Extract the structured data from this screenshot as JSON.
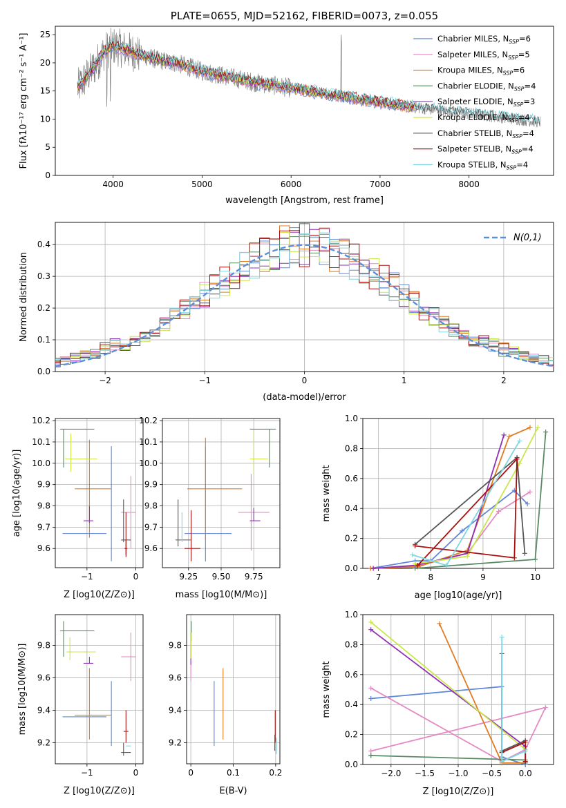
{
  "colors": {
    "chabrier_miles": "#5f86d9",
    "salpeter_miles": "#e38ac4",
    "kroupa_miles": "#e07b20",
    "chabrier_elodie": "#5a8a64",
    "salpeter_elodie": "#8e2fb5",
    "kroupa_elodie": "#c8e84a",
    "chabrier_stelib": "#555555",
    "salpeter_stelib": "#a81010",
    "kroupa_stelib": "#7fd6e0",
    "gaussian": "#5b8fd8",
    "grid": "#b0b0b0"
  },
  "legend_series": [
    {
      "label": "Chabrier MILES, N",
      "sub": "SSP",
      "tail": "=6",
      "color_key": "chabrier_miles"
    },
    {
      "label": "Salpeter MILES, N",
      "sub": "SSP",
      "tail": "=5",
      "color_key": "salpeter_miles"
    },
    {
      "label": "Kroupa MILES, N",
      "sub": "SSP",
      "tail": "=6",
      "color_key": "kroupa_miles"
    },
    {
      "label": "Chabrier ELODIE, N",
      "sub": "SSP",
      "tail": "=4",
      "color_key": "chabrier_elodie"
    },
    {
      "label": "Salpeter ELODIE, N",
      "sub": "SSP",
      "tail": "=3",
      "color_key": "salpeter_elodie"
    },
    {
      "label": "Kroupa ELODIE, N",
      "sub": "SSP",
      "tail": "=4",
      "color_key": "kroupa_elodie"
    },
    {
      "label": "Chabrier STELIB, N",
      "sub": "SSP",
      "tail": "=4",
      "color_key": "chabrier_stelib"
    },
    {
      "label": "Salpeter STELIB, N",
      "sub": "SSP",
      "tail": "=4",
      "color_key": "salpeter_stelib"
    },
    {
      "label": "Kroupa STELIB, N",
      "sub": "SSP",
      "tail": "=4",
      "color_key": "kroupa_stelib"
    }
  ],
  "chart_data": [
    {
      "id": "spectrum",
      "type": "line",
      "title": "PLATE=0655, MJD=52162, FIBERID=0073, z=0.055",
      "xlabel": "wavelength [Angstrom, rest frame]",
      "ylabel": "Flux [fλ10⁻¹⁷ erg cm⁻² s⁻¹ A⁻¹]",
      "xlim": [
        3350,
        8950
      ],
      "ylim": [
        0,
        26.5
      ],
      "xticks": [
        4000,
        5000,
        6000,
        7000,
        8000
      ],
      "yticks": [
        0,
        5,
        10,
        15,
        20,
        25
      ],
      "legend": "upper right",
      "continuum": {
        "x": [
          3600,
          3700,
          3800,
          3900,
          4000,
          4100,
          4300,
          4500,
          4700,
          5000,
          5300,
          5600,
          6000,
          6400,
          6800,
          7200,
          7600,
          8000,
          8400,
          8800
        ],
        "y": [
          15.5,
          17.5,
          19.5,
          22.0,
          23.0,
          22.5,
          21.5,
          20.5,
          20.0,
          18.5,
          17.5,
          16.5,
          15.5,
          14.5,
          13.5,
          12.5,
          11.7,
          11.0,
          10.3,
          9.5
        ]
      },
      "data_x_range": [
        3600,
        8800
      ]
    },
    {
      "id": "residuals",
      "type": "line",
      "xlabel": "(data-model)/error",
      "ylabel": "Normed distribution",
      "xlim": [
        -2.5,
        2.5
      ],
      "ylim": [
        0,
        0.47
      ],
      "xticks": [
        -2,
        -1,
        0,
        1,
        2
      ],
      "yticks": [
        0.0,
        0.1,
        0.2,
        0.3,
        0.4
      ],
      "legend": "upper right",
      "gaussian_label": "N(0,1)",
      "histogram_bin_width": 0.1
    },
    {
      "id": "age_vs_z",
      "type": "scatter",
      "xlabel": "Z [log10(Z/Z⊙)]",
      "ylabel": "age  [log10(age/yr)]",
      "xlim": [
        -1.65,
        0.15
      ],
      "ylim": [
        9.51,
        10.21
      ],
      "xticks": [
        -1,
        0
      ],
      "yticks": [
        9.6,
        9.7,
        9.8,
        9.9,
        10.0,
        10.1,
        10.2
      ],
      "points": [
        {
          "key": "chabrier_miles",
          "x": -1.05,
          "xerr": 0.45,
          "y": 9.67,
          "yerr": 0.0
        },
        {
          "key": "chabrier_miles",
          "x": -0.5,
          "xerr": 0.0,
          "y": 9.81,
          "yerr": 0.27
        },
        {
          "key": "salpeter_miles",
          "x": -0.15,
          "xerr": 0.15,
          "y": 9.77,
          "yerr": 0.0
        },
        {
          "key": "salpeter_miles",
          "x": -0.1,
          "xerr": 0.0,
          "y": 9.77,
          "yerr": 0.17
        },
        {
          "key": "kroupa_miles",
          "x": -0.95,
          "xerr": 0.0,
          "y": 9.88,
          "yerr": 0.23
        },
        {
          "key": "kroupa_miles",
          "x": -0.88,
          "xerr": 0.37,
          "y": 9.88,
          "yerr": 0.0
        },
        {
          "key": "chabrier_elodie",
          "x": -1.2,
          "xerr": 0.35,
          "y": 10.16,
          "yerr": 0.0
        },
        {
          "key": "chabrier_elodie",
          "x": -1.48,
          "xerr": 0.0,
          "y": 10.07,
          "yerr": 0.09
        },
        {
          "key": "salpeter_elodie",
          "x": -0.97,
          "xerr": 0.1,
          "y": 9.73,
          "yerr": 0.0
        },
        {
          "key": "salpeter_elodie",
          "x": -0.95,
          "xerr": 0.0,
          "y": 9.76,
          "yerr": 0.04
        },
        {
          "key": "kroupa_elodie",
          "x": -1.12,
          "xerr": 0.33,
          "y": 10.02,
          "yerr": 0.0
        },
        {
          "key": "kroupa_elodie",
          "x": -1.33,
          "xerr": 0.0,
          "y": 10.05,
          "yerr": 0.09
        },
        {
          "key": "chabrier_stelib",
          "x": -0.2,
          "xerr": 0.1,
          "y": 9.64,
          "yerr": 0.0
        },
        {
          "key": "chabrier_stelib",
          "x": -0.25,
          "xerr": 0.0,
          "y": 9.73,
          "yerr": 0.1
        },
        {
          "key": "salpeter_stelib",
          "x": -0.2,
          "xerr": 0.03,
          "y": 9.6,
          "yerr": 0.04
        },
        {
          "key": "salpeter_stelib",
          "x": -0.2,
          "xerr": 0.0,
          "y": 9.67,
          "yerr": 0.1
        }
      ]
    },
    {
      "id": "age_vs_mass",
      "type": "scatter",
      "xlabel": "mass [log10(M/M⊙)]",
      "ylabel": "",
      "xlim": [
        9.05,
        9.95
      ],
      "ylim": [
        9.51,
        10.21
      ],
      "xticks": [
        9.25,
        9.5,
        9.75
      ],
      "xticklabels": [
        "9.25",
        "9.50",
        "9.75"
      ],
      "yticks": [
        9.6,
        9.7,
        9.8,
        9.9,
        10.0,
        10.1,
        10.2
      ],
      "points": [
        {
          "key": "chabrier_miles",
          "x": 9.38,
          "xerr": 0.0,
          "y": 9.81,
          "yerr": 0.27
        },
        {
          "key": "chabrier_miles",
          "x": 9.4,
          "xerr": 0.18,
          "y": 9.67,
          "yerr": 0.0
        },
        {
          "key": "salpeter_miles",
          "x": 9.75,
          "xerr": 0.12,
          "y": 9.77,
          "yerr": 0.0
        },
        {
          "key": "salpeter_miles",
          "x": 9.73,
          "xerr": 0.0,
          "y": 9.77,
          "yerr": 0.18
        },
        {
          "key": "kroupa_miles",
          "x": 9.38,
          "xerr": 0.0,
          "y": 9.88,
          "yerr": 0.24
        },
        {
          "key": "kroupa_miles",
          "x": 9.45,
          "xerr": 0.21,
          "y": 9.88,
          "yerr": 0.0
        },
        {
          "key": "chabrier_elodie",
          "x": 9.82,
          "xerr": 0.1,
          "y": 10.16,
          "yerr": 0.0
        },
        {
          "key": "chabrier_elodie",
          "x": 9.87,
          "xerr": 0.0,
          "y": 10.07,
          "yerr": 0.09
        },
        {
          "key": "salpeter_elodie",
          "x": 9.76,
          "xerr": 0.04,
          "y": 9.73,
          "yerr": 0.0
        },
        {
          "key": "salpeter_elodie",
          "x": 9.75,
          "xerr": 0.0,
          "y": 9.76,
          "yerr": 0.03
        },
        {
          "key": "kroupa_elodie",
          "x": 9.79,
          "xerr": 0.07,
          "y": 10.02,
          "yerr": 0.0
        },
        {
          "key": "kroupa_elodie",
          "x": 9.75,
          "xerr": 0.0,
          "y": 10.05,
          "yerr": 0.1
        },
        {
          "key": "chabrier_stelib",
          "x": 9.21,
          "xerr": 0.06,
          "y": 9.64,
          "yerr": 0.0
        },
        {
          "key": "chabrier_stelib",
          "x": 9.17,
          "xerr": 0.0,
          "y": 9.72,
          "yerr": 0.11
        },
        {
          "key": "salpeter_stelib",
          "x": 9.28,
          "xerr": 0.06,
          "y": 9.6,
          "yerr": 0.0
        },
        {
          "key": "salpeter_stelib",
          "x": 9.27,
          "xerr": 0.0,
          "y": 9.66,
          "yerr": 0.12
        },
        {
          "key": "kroupa_stelib",
          "x": 9.2,
          "xerr": 0.0,
          "y": 9.7,
          "yerr": 0.07
        }
      ]
    },
    {
      "id": "massweight_vs_age",
      "type": "line",
      "xlabel": "age  [log10(age/yr)]",
      "ylabel": "mass weight",
      "xlim": [
        6.7,
        10.35
      ],
      "ylim": [
        0,
        1.0
      ],
      "xticks": [
        7,
        8,
        9,
        10
      ],
      "yticks": [
        0.0,
        0.2,
        0.4,
        0.6,
        0.8,
        1.0
      ],
      "series": [
        {
          "key": "chabrier_miles",
          "x": [
            6.85,
            7.7,
            8.0,
            8.6,
            9.6,
            9.85
          ],
          "y": [
            0.0,
            0.05,
            0.05,
            0.25,
            0.52,
            0.43
          ]
        },
        {
          "key": "salpeter_miles",
          "x": [
            6.9,
            7.8,
            8.7,
            9.3,
            9.9
          ],
          "y": [
            0.0,
            0.02,
            0.1,
            0.38,
            0.51
          ]
        },
        {
          "key": "kroupa_miles",
          "x": [
            6.85,
            7.75,
            8.7,
            9.5,
            9.9
          ],
          "y": [
            0.0,
            0.01,
            0.12,
            0.88,
            0.94
          ]
        },
        {
          "key": "chabrier_elodie",
          "x": [
            7.7,
            10.0,
            10.2
          ],
          "y": [
            0.0,
            0.06,
            0.91
          ]
        },
        {
          "key": "salpeter_elodie",
          "x": [
            6.9,
            7.7,
            8.7,
            9.4
          ],
          "y": [
            0.0,
            0.02,
            0.1,
            0.89
          ]
        },
        {
          "key": "kroupa_elodie",
          "x": [
            7.7,
            8.7,
            9.7,
            10.05
          ],
          "y": [
            0.03,
            0.08,
            0.7,
            0.94
          ]
        },
        {
          "key": "chabrier_stelib",
          "x": [
            7.7,
            9.65,
            9.8
          ],
          "y": [
            0.16,
            0.74,
            0.1
          ]
        },
        {
          "key": "salpeter_stelib",
          "x": [
            7.7,
            9.6,
            9.65,
            7.75
          ],
          "y": [
            0.15,
            0.07,
            0.73,
            0.02
          ]
        },
        {
          "key": "kroupa_stelib",
          "x": [
            7.65,
            8.3,
            9.7
          ],
          "y": [
            0.09,
            0.02,
            0.85
          ]
        }
      ]
    },
    {
      "id": "mass_vs_z",
      "type": "scatter",
      "xlabel": "Z [log10(Z/Z⊙)]",
      "ylabel": "mass [log10(M/M⊙)]",
      "xlim": [
        -1.65,
        0.15
      ],
      "ylim": [
        9.07,
        9.99
      ],
      "xticks": [
        -1,
        0
      ],
      "yticks": [
        9.2,
        9.4,
        9.6,
        9.8
      ],
      "points": [
        {
          "key": "chabrier_miles",
          "x": -1.05,
          "xerr": 0.45,
          "y": 9.36,
          "yerr": 0.0
        },
        {
          "key": "chabrier_miles",
          "x": -0.5,
          "xerr": 0.0,
          "y": 9.38,
          "yerr": 0.2
        },
        {
          "key": "salpeter_miles",
          "x": -0.15,
          "xerr": 0.15,
          "y": 9.73,
          "yerr": 0.0
        },
        {
          "key": "salpeter_miles",
          "x": -0.1,
          "xerr": 0.0,
          "y": 9.73,
          "yerr": 0.15
        },
        {
          "key": "kroupa_miles",
          "x": -0.95,
          "xerr": 0.0,
          "y": 9.44,
          "yerr": 0.22
        },
        {
          "key": "kroupa_miles",
          "x": -0.88,
          "xerr": 0.37,
          "y": 9.37,
          "yerr": 0.0
        },
        {
          "key": "chabrier_elodie",
          "x": -1.2,
          "xerr": 0.35,
          "y": 9.89,
          "yerr": 0.0
        },
        {
          "key": "chabrier_elodie",
          "x": -1.48,
          "xerr": 0.0,
          "y": 9.84,
          "yerr": 0.11
        },
        {
          "key": "salpeter_elodie",
          "x": -0.97,
          "xerr": 0.1,
          "y": 9.69,
          "yerr": 0.0
        },
        {
          "key": "salpeter_elodie",
          "x": -0.95,
          "xerr": 0.0,
          "y": 9.71,
          "yerr": 0.02
        },
        {
          "key": "kroupa_elodie",
          "x": -1.12,
          "xerr": 0.3,
          "y": 9.76,
          "yerr": 0.0
        },
        {
          "key": "kroupa_elodie",
          "x": -1.35,
          "xerr": 0.0,
          "y": 9.78,
          "yerr": 0.07
        },
        {
          "key": "chabrier_stelib",
          "x": -0.2,
          "xerr": 0.1,
          "y": 9.14,
          "yerr": 0.0
        },
        {
          "key": "chabrier_stelib",
          "x": -0.25,
          "xerr": 0.0,
          "y": 9.16,
          "yerr": 0.04
        },
        {
          "key": "salpeter_stelib",
          "x": -0.2,
          "xerr": 0.05,
          "y": 9.27,
          "yerr": 0.0
        },
        {
          "key": "salpeter_stelib",
          "x": -0.2,
          "xerr": 0.0,
          "y": 9.3,
          "yerr": 0.1
        },
        {
          "key": "kroupa_stelib",
          "x": -0.15,
          "xerr": 0.05,
          "y": 9.18,
          "yerr": 0.0
        }
      ]
    },
    {
      "id": "mass_vs_ebv",
      "type": "scatter",
      "xlabel": "E(B-V)",
      "ylabel": "",
      "xlim": [
        -0.01,
        0.21
      ],
      "ylim": [
        9.07,
        9.99
      ],
      "xticks": [
        0.0,
        0.1,
        0.2
      ],
      "yticks": [
        9.2,
        9.4,
        9.6,
        9.8
      ],
      "points": [
        {
          "key": "chabrier_miles",
          "x": 0.055,
          "xerr": 0.0,
          "y": 9.38,
          "yerr": 0.2
        },
        {
          "key": "kroupa_miles",
          "x": 0.076,
          "xerr": 0.0,
          "y": 9.44,
          "yerr": 0.22
        },
        {
          "key": "salpeter_miles",
          "x": 0.0,
          "xerr": 0.0,
          "y": 9.73,
          "yerr": 0.15
        },
        {
          "key": "chabrier_elodie",
          "x": 0.001,
          "xerr": 0.0,
          "y": 9.89,
          "yerr": 0.06
        },
        {
          "key": "kroupa_elodie",
          "x": 0.001,
          "xerr": 0.0,
          "y": 9.8,
          "yerr": 0.08
        },
        {
          "key": "salpeter_elodie",
          "x": 0.0,
          "xerr": 0.0,
          "y": 9.7,
          "yerr": 0.02
        },
        {
          "key": "salpeter_stelib",
          "x": 0.199,
          "xerr": 0.0,
          "y": 9.3,
          "yerr": 0.1
        },
        {
          "key": "chabrier_stelib",
          "x": 0.198,
          "xerr": 0.0,
          "y": 9.2,
          "yerr": 0.05
        },
        {
          "key": "kroupa_stelib",
          "x": 0.202,
          "xerr": 0.0,
          "y": 9.18,
          "yerr": 0.05
        }
      ]
    },
    {
      "id": "massweight_vs_z",
      "type": "line",
      "xlabel": "Z [log10(Z/Z⊙)]",
      "ylabel": "mass weight",
      "xlim": [
        -2.42,
        0.42
      ],
      "ylim": [
        0,
        1.0
      ],
      "xticks": [
        -2.0,
        -1.5,
        -1.0,
        -0.5,
        0.0
      ],
      "xticklabels": [
        "−2.0",
        "−1.5",
        "−1.0",
        "−0.5",
        "0.0"
      ],
      "yticks": [
        0.0,
        0.2,
        0.4,
        0.6,
        0.8,
        1.0
      ],
      "series": [
        {
          "key": "chabrier_miles",
          "x": [
            -2.3,
            -0.35,
            -0.35,
            0.0
          ],
          "y": [
            0.44,
            0.52,
            0.05,
            0.0
          ]
        },
        {
          "key": "salpeter_miles",
          "x": [
            -2.3,
            -0.35,
            0.0,
            0.3,
            -2.3
          ],
          "y": [
            0.51,
            0.02,
            0.1,
            0.38,
            0.09
          ]
        },
        {
          "key": "kroupa_miles",
          "x": [
            -1.28,
            -0.35,
            0.0
          ],
          "y": [
            0.94,
            0.01,
            0.01
          ]
        },
        {
          "key": "chabrier_elodie",
          "x": [
            -2.3,
            -2.3,
            0.0,
            0.0
          ],
          "y": [
            0.06,
            0.06,
            0.03,
            0.01
          ]
        },
        {
          "key": "salpeter_elodie",
          "x": [
            -2.3,
            0.0,
            0.0
          ],
          "y": [
            0.9,
            0.12,
            0.02
          ]
        },
        {
          "key": "kroupa_elodie",
          "x": [
            -2.3,
            0.0
          ],
          "y": [
            0.95,
            0.1
          ]
        },
        {
          "key": "chabrier_stelib",
          "x": [
            -0.35,
            -0.35,
            0.0
          ],
          "y": [
            0.74,
            0.09,
            0.16
          ]
        },
        {
          "key": "salpeter_stelib",
          "x": [
            -0.35,
            0.0,
            0.0
          ],
          "y": [
            0.08,
            0.15,
            0.02
          ]
        },
        {
          "key": "kroupa_stelib",
          "x": [
            -0.35,
            -0.35,
            0.0
          ],
          "y": [
            0.85,
            0.02,
            0.09
          ]
        }
      ]
    }
  ]
}
